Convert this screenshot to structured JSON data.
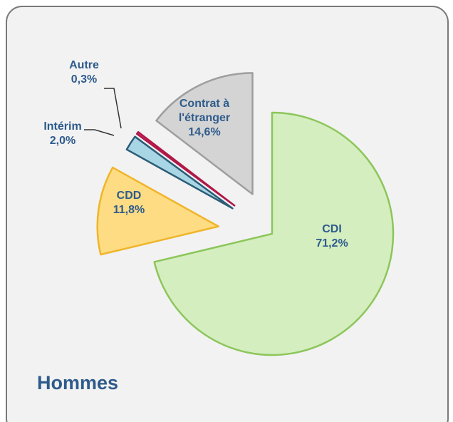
{
  "chart_data": {
    "type": "pie",
    "title": "Hommes",
    "categories": [
      "CDI",
      "CDD",
      "Intérim",
      "Autre",
      "Contrat à l'étranger"
    ],
    "values": [
      71.2,
      11.8,
      2.0,
      0.3,
      14.6
    ],
    "value_labels": [
      "71,2%",
      "11,8%",
      "2,0%",
      "0,3%",
      "14,6%"
    ],
    "colors": [
      "#d5eec0",
      "#fddc83",
      "#a8d6e4",
      "#e8336d",
      "#d4d4d4"
    ],
    "edge_colors": [
      "#8cc65a",
      "#f0b52a",
      "#2b5c77",
      "#b01848",
      "#9e9e9e"
    ]
  }
}
